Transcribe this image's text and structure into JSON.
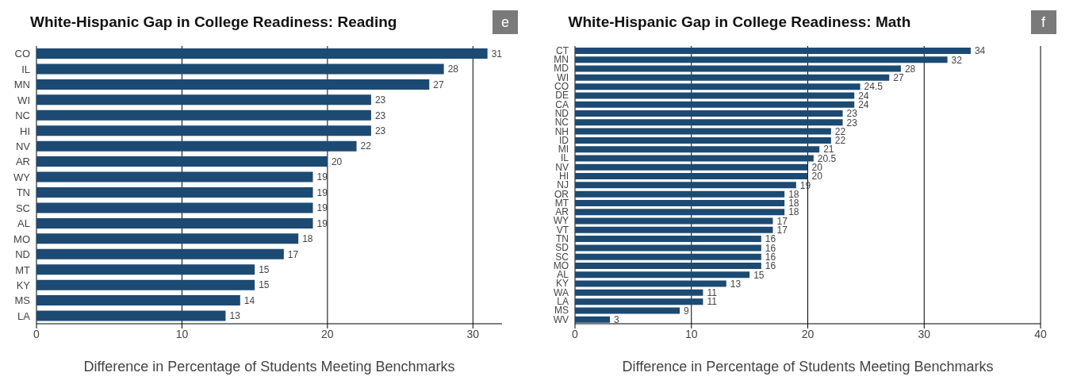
{
  "chart_data": [
    {
      "type": "bar",
      "orientation": "horizontal",
      "title": "White-Hispanic Gap in College Readiness: Reading",
      "xlabel": "Difference in Percentage of Students Meeting Benchmarks",
      "annotations": [
        "e"
      ],
      "categories": [
        "CO",
        "IL",
        "MN",
        "WI",
        "NC",
        "HI",
        "NV",
        "AR",
        "WY",
        "TN",
        "SC",
        "AL",
        "MO",
        "ND",
        "MT",
        "KY",
        "MS",
        "LA"
      ],
      "values": [
        31,
        28,
        27,
        23,
        23,
        23,
        22,
        20,
        19,
        19,
        19,
        19,
        18,
        17,
        15,
        15,
        14,
        13
      ],
      "color": "#1c4a72",
      "xlim": [
        0,
        32
      ],
      "xticks": [
        0,
        10,
        20,
        30
      ],
      "grid": "x",
      "data_labels": true
    },
    {
      "type": "bar",
      "orientation": "horizontal",
      "title": "White-Hispanic Gap in College Readiness: Math",
      "xlabel": "Difference in Percentage of Students Meeting Benchmarks",
      "annotations": [
        "f"
      ],
      "categories": [
        "CT",
        "MN",
        "MD",
        "WI",
        "CO",
        "DE",
        "CA",
        "ND",
        "NC",
        "NH",
        "ID",
        "MI",
        "IL",
        "NV",
        "HI",
        "NJ",
        "OR",
        "MT",
        "AR",
        "WY",
        "VT",
        "TN",
        "SD",
        "SC",
        "MO",
        "AL",
        "KY",
        "WA",
        "LA",
        "MS",
        "WV"
      ],
      "values": [
        34,
        32,
        28,
        27,
        24.5,
        24,
        24,
        23,
        23,
        22,
        22,
        21,
        20.5,
        20,
        20,
        19,
        18,
        18,
        18,
        17,
        17,
        16,
        16,
        16,
        16,
        15,
        13,
        11,
        11,
        9,
        3
      ],
      "color": "#1c4a72",
      "xlim": [
        0,
        40
      ],
      "xticks": [
        0,
        10,
        20,
        30,
        40
      ],
      "grid": "x",
      "data_labels": true
    }
  ]
}
